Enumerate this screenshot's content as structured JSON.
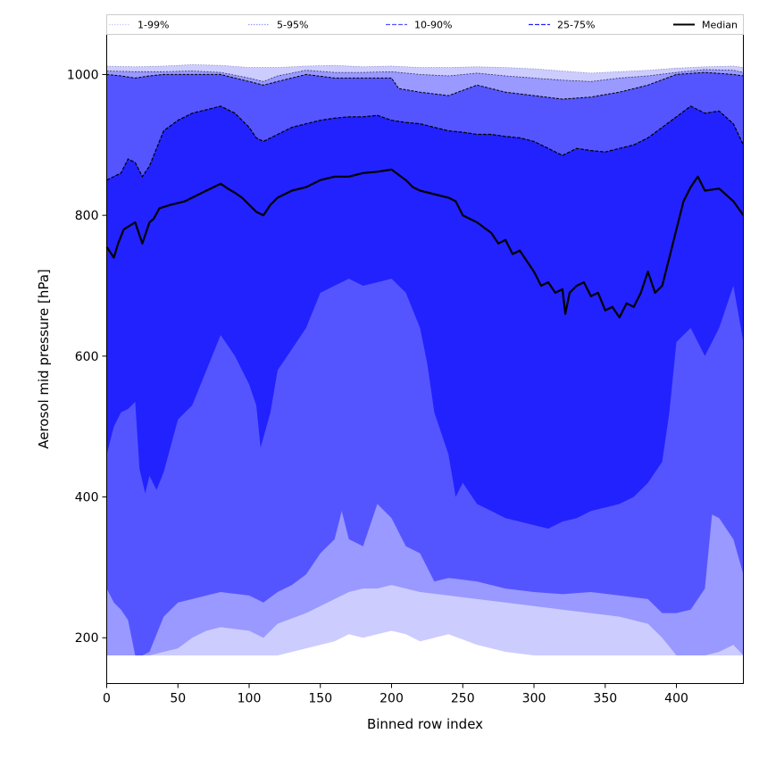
{
  "chart_data": {
    "type": "area",
    "xlabel": "Binned row index",
    "ylabel": "Aerosol mid pressure [hPa]",
    "xlim": [
      0,
      447
    ],
    "ylim": [
      135,
      1057
    ],
    "xticks": [
      0,
      50,
      100,
      150,
      200,
      250,
      300,
      350,
      400
    ],
    "yticks": [
      200,
      400,
      600,
      800,
      1000
    ],
    "grid": false,
    "legend_position": "top, spanning full width",
    "floor_value": 175,
    "legend": [
      {
        "label": "1-99%",
        "color": "#ccccff",
        "style": "dotted"
      },
      {
        "label": "5-95%",
        "color": "#9999ff",
        "style": "dotted"
      },
      {
        "label": "10-90%",
        "color": "#5555ff",
        "style": "dashed"
      },
      {
        "label": "25-75%",
        "color": "#2222ff",
        "style": "dashed"
      },
      {
        "label": "Median",
        "color": "#000000",
        "style": "solid"
      }
    ],
    "series": [
      {
        "name": "1%",
        "x": [
          0,
          10,
          20,
          40,
          60,
          80,
          100,
          120,
          140,
          150,
          160,
          170,
          180,
          190,
          200,
          210,
          220,
          240,
          260,
          280,
          300,
          320,
          340,
          360,
          380,
          400,
          420,
          440,
          447
        ],
        "values": [
          175,
          175,
          175,
          175,
          175,
          175,
          175,
          175,
          185,
          190,
          195,
          205,
          200,
          205,
          210,
          205,
          195,
          205,
          190,
          180,
          175,
          175,
          175,
          175,
          175,
          175,
          175,
          175,
          175
        ]
      },
      {
        "name": "5%",
        "x": [
          0,
          10,
          20,
          25,
          30,
          40,
          50,
          60,
          70,
          80,
          100,
          110,
          120,
          140,
          150,
          160,
          170,
          180,
          190,
          200,
          210,
          220,
          240,
          260,
          280,
          300,
          320,
          340,
          360,
          380,
          390,
          400,
          410,
          420,
          430,
          440,
          447
        ],
        "values": [
          175,
          175,
          175,
          175,
          175,
          180,
          185,
          200,
          210,
          215,
          210,
          200,
          220,
          235,
          245,
          255,
          265,
          270,
          270,
          275,
          270,
          265,
          260,
          255,
          250,
          245,
          240,
          235,
          230,
          220,
          200,
          175,
          175,
          175,
          180,
          190,
          175
        ]
      },
      {
        "name": "10%",
        "x": [
          0,
          5,
          10,
          15,
          20,
          25,
          30,
          40,
          50,
          60,
          70,
          80,
          100,
          110,
          120,
          130,
          140,
          150,
          160,
          165,
          170,
          180,
          190,
          200,
          210,
          220,
          230,
          240,
          260,
          280,
          300,
          320,
          340,
          360,
          380,
          390,
          400,
          410,
          420,
          425,
          430,
          440,
          447
        ],
        "values": [
          270,
          250,
          240,
          225,
          175,
          175,
          180,
          230,
          250,
          255,
          260,
          265,
          260,
          250,
          265,
          275,
          290,
          320,
          340,
          380,
          340,
          330,
          390,
          370,
          330,
          320,
          280,
          285,
          280,
          270,
          265,
          262,
          265,
          260,
          255,
          235,
          235,
          240,
          270,
          375,
          370,
          340,
          290
        ]
      },
      {
        "name": "25%",
        "x": [
          0,
          5,
          10,
          15,
          20,
          23,
          27,
          30,
          35,
          40,
          50,
          55,
          60,
          70,
          80,
          90,
          100,
          105,
          108,
          115,
          120,
          130,
          140,
          150,
          160,
          170,
          180,
          190,
          200,
          210,
          220,
          225,
          230,
          240,
          245,
          250,
          260,
          270,
          280,
          290,
          300,
          310,
          320,
          330,
          340,
          350,
          360,
          370,
          380,
          390,
          395,
          400,
          410,
          420,
          430,
          440,
          447
        ],
        "values": [
          460,
          500,
          520,
          525,
          535,
          440,
          405,
          430,
          410,
          435,
          510,
          520,
          530,
          580,
          630,
          600,
          560,
          530,
          470,
          520,
          580,
          610,
          640,
          690,
          700,
          710,
          700,
          705,
          710,
          690,
          640,
          590,
          520,
          460,
          400,
          420,
          390,
          380,
          370,
          365,
          360,
          355,
          365,
          370,
          380,
          385,
          390,
          400,
          420,
          450,
          520,
          620,
          640,
          600,
          640,
          700,
          620
        ]
      },
      {
        "name": "75%",
        "x": [
          0,
          10,
          15,
          20,
          25,
          30,
          40,
          50,
          60,
          70,
          80,
          90,
          100,
          105,
          110,
          120,
          130,
          140,
          150,
          160,
          170,
          180,
          190,
          200,
          210,
          220,
          230,
          240,
          250,
          260,
          270,
          280,
          290,
          300,
          310,
          320,
          330,
          340,
          350,
          360,
          370,
          380,
          390,
          400,
          410,
          420,
          430,
          440,
          447
        ],
        "values": [
          850,
          860,
          880,
          875,
          855,
          870,
          920,
          935,
          945,
          950,
          955,
          945,
          925,
          910,
          905,
          915,
          925,
          930,
          935,
          938,
          940,
          940,
          942,
          935,
          932,
          930,
          925,
          920,
          918,
          915,
          915,
          912,
          910,
          905,
          895,
          885,
          895,
          892,
          890,
          895,
          900,
          910,
          925,
          940,
          955,
          945,
          948,
          930,
          900
        ]
      },
      {
        "name": "90%",
        "x": [
          0,
          10,
          20,
          30,
          40,
          60,
          80,
          100,
          110,
          120,
          140,
          160,
          180,
          200,
          205,
          220,
          240,
          260,
          280,
          300,
          320,
          340,
          360,
          380,
          400,
          420,
          440,
          447
        ],
        "values": [
          1000,
          998,
          995,
          998,
          1000,
          1000,
          1000,
          990,
          985,
          990,
          1000,
          995,
          995,
          995,
          980,
          975,
          970,
          985,
          975,
          970,
          965,
          968,
          975,
          985,
          1000,
          1003,
          1000,
          998
        ]
      },
      {
        "name": "95%",
        "x": [
          0,
          20,
          40,
          60,
          80,
          100,
          110,
          120,
          140,
          160,
          180,
          200,
          220,
          240,
          260,
          280,
          300,
          320,
          340,
          360,
          380,
          400,
          420,
          440,
          447
        ],
        "values": [
          1005,
          1004,
          1004,
          1005,
          1003,
          995,
          990,
          998,
          1006,
          1003,
          1003,
          1004,
          1000,
          998,
          1002,
          998,
          995,
          992,
          990,
          995,
          998,
          1003,
          1007,
          1006,
          1003
        ]
      },
      {
        "name": "99%",
        "x": [
          0,
          20,
          40,
          60,
          80,
          100,
          120,
          140,
          160,
          180,
          200,
          220,
          240,
          260,
          280,
          300,
          320,
          340,
          360,
          380,
          400,
          420,
          440,
          447
        ],
        "values": [
          1012,
          1011,
          1012,
          1014,
          1013,
          1010,
          1010,
          1012,
          1013,
          1011,
          1012,
          1010,
          1010,
          1011,
          1010,
          1008,
          1005,
          1002,
          1004,
          1006,
          1009,
          1011,
          1012,
          1010
        ]
      },
      {
        "name": "Median",
        "x": [
          0,
          5,
          8,
          12,
          20,
          25,
          30,
          33,
          37,
          45,
          55,
          60,
          70,
          80,
          85,
          90,
          95,
          100,
          105,
          110,
          115,
          120,
          130,
          140,
          150,
          160,
          170,
          180,
          190,
          200,
          210,
          215,
          220,
          230,
          240,
          245,
          250,
          255,
          260,
          270,
          275,
          280,
          285,
          290,
          295,
          300,
          305,
          310,
          315,
          320,
          322,
          325,
          330,
          335,
          340,
          345,
          350,
          355,
          360,
          365,
          370,
          375,
          380,
          385,
          390,
          395,
          400,
          405,
          410,
          415,
          420,
          430,
          440,
          447
        ],
        "values": [
          755,
          740,
          760,
          780,
          790,
          760,
          790,
          795,
          810,
          815,
          820,
          825,
          835,
          845,
          838,
          832,
          825,
          815,
          805,
          800,
          815,
          825,
          835,
          840,
          850,
          855,
          855,
          860,
          862,
          865,
          850,
          840,
          835,
          830,
          825,
          820,
          800,
          795,
          790,
          775,
          760,
          765,
          745,
          750,
          735,
          720,
          700,
          705,
          690,
          695,
          660,
          690,
          700,
          705,
          685,
          690,
          665,
          670,
          655,
          675,
          670,
          690,
          720,
          690,
          700,
          740,
          780,
          820,
          840,
          855,
          835,
          838,
          820,
          800
        ]
      }
    ]
  }
}
